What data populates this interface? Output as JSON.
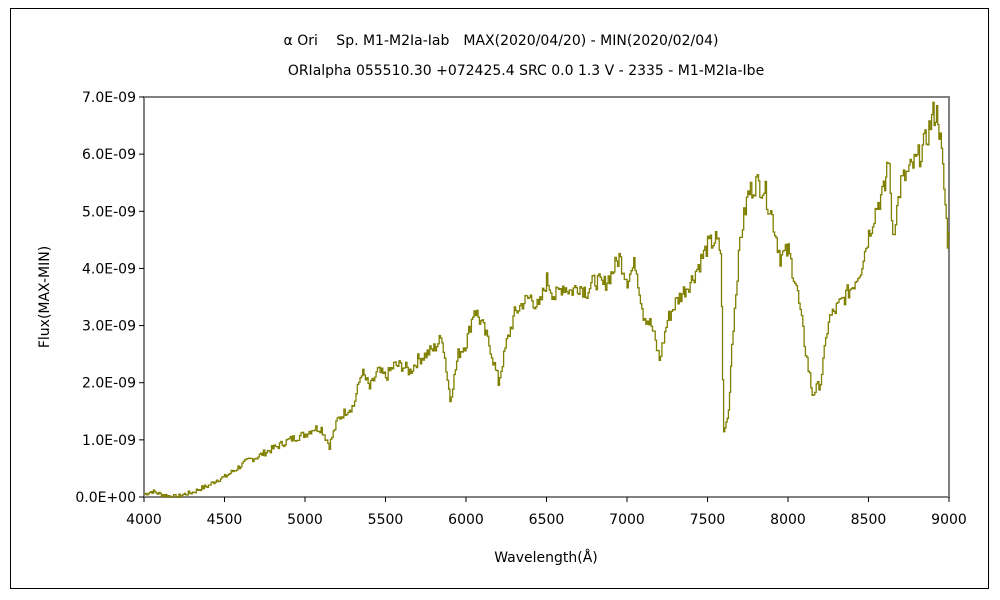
{
  "chart_data": {
    "type": "line",
    "title": "α Ori　 Sp. M1-M2Ia-Iab　MAX(2020/04/20) - MIN(2020/02/04)",
    "subtitle": "ORIalpha 055510.30 +072425.4 SRC 0.0 1.3 V - 2335 - M1-M2Ia-Ibe",
    "xlabel": "Wavelength(Å)",
    "ylabel": "Flux(MAX-MIN)",
    "xlim": [
      4000,
      9000
    ],
    "ylim": [
      0,
      7e-09
    ],
    "xticks": [
      "4000",
      "4500",
      "5000",
      "5500",
      "6000",
      "6500",
      "7000",
      "7500",
      "8000",
      "8500",
      "9000"
    ],
    "yticks": [
      "0.0E+00",
      "1.0E-09",
      "2.0E-09",
      "3.0E-09",
      "4.0E-09",
      "5.0E-09",
      "6.0E-09",
      "7.0E-09"
    ],
    "grid": false,
    "line_color": "#808000",
    "series": [
      {
        "x": [
          4000,
          4050,
          4100,
          4150,
          4200,
          4250,
          4300,
          4350,
          4400,
          4450,
          4500,
          4550,
          4600,
          4650,
          4700,
          4750,
          4800,
          4850,
          4900,
          4950,
          5000,
          5050,
          5100,
          5150,
          5200,
          5250,
          5300,
          5350,
          5400,
          5450,
          5500,
          5550,
          5600,
          5650,
          5700,
          5750,
          5800,
          5850,
          5900,
          5950,
          6000,
          6050,
          6100,
          6150,
          6200,
          6250,
          6300,
          6350,
          6400,
          6450,
          6500,
          6550,
          6600,
          6650,
          6700,
          6750,
          6800,
          6850,
          6900,
          6950,
          7000,
          7050,
          7100,
          7150,
          7200,
          7250,
          7300,
          7350,
          7400,
          7450,
          7500,
          7550,
          7580,
          7600,
          7630,
          7650,
          7700,
          7750,
          7800,
          7850,
          7900,
          7950,
          8000,
          8050,
          8100,
          8150,
          8200,
          8250,
          8300,
          8350,
          8400,
          8450,
          8500,
          8550,
          8600,
          8620,
          8650,
          8700,
          8750,
          8800,
          8850,
          8900,
          8930,
          8960,
          8990,
          9000
        ],
        "y": [
          5e-11,
          1e-10,
          5e-11,
          2e-11,
          0.0,
          5e-11,
          8e-11,
          1.5e-10,
          2e-10,
          3e-10,
          3.5e-10,
          4.5e-10,
          5.5e-10,
          6.5e-10,
          7e-10,
          7.8e-10,
          8.5e-10,
          9.2e-10,
          1e-09,
          1.05e-09,
          1.1e-09,
          1.2e-09,
          1.2e-09,
          9e-10,
          1.35e-09,
          1.5e-09,
          1.6e-09,
          2.2e-09,
          1.9e-09,
          2.2e-09,
          2.1e-09,
          2.3e-09,
          2.3e-09,
          2.2e-09,
          2.4e-09,
          2.5e-09,
          2.6e-09,
          2.8e-09,
          1.7e-09,
          2.5e-09,
          2.7e-09,
          3.3e-09,
          3e-09,
          2.6e-09,
          2e-09,
          2.7e-09,
          3.2e-09,
          3.4e-09,
          3.5e-09,
          3.3e-09,
          3.8e-09,
          3.5e-09,
          3.7e-09,
          3.6e-09,
          3.7e-09,
          3.6e-09,
          3.8e-09,
          3.7e-09,
          3.9e-09,
          4.2e-09,
          3.8e-09,
          4.1e-09,
          3.2e-09,
          3e-09,
          2.4e-09,
          3.1e-09,
          3.4e-09,
          3.6e-09,
          3.8e-09,
          4.1e-09,
          4.4e-09,
          4.5e-09,
          4.3e-09,
          1.1e-09,
          1.5e-09,
          2.7e-09,
          4.5e-09,
          5.3e-09,
          5.5e-09,
          5.4e-09,
          4.9e-09,
          4.2e-09,
          4.3e-09,
          3.7e-09,
          2.7e-09,
          1.8e-09,
          2e-09,
          3.1e-09,
          3.3e-09,
          3.5e-09,
          3.7e-09,
          4e-09,
          4.6e-09,
          5.1e-09,
          5.4e-09,
          6e-09,
          4.6e-09,
          5.5e-09,
          5.7e-09,
          5.9e-09,
          6.2e-09,
          6.7e-09,
          6.7e-09,
          5.7e-09,
          4.5e-09,
          4.6e-09
        ]
      }
    ]
  }
}
